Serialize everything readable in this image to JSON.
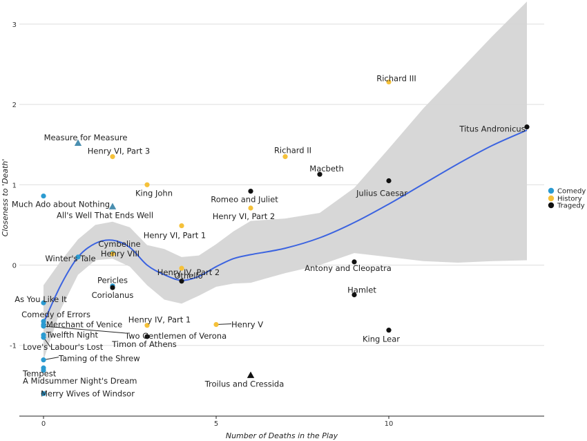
{
  "chart_data": {
    "type": "scatter",
    "xlabel": "Number of Deaths in the Play",
    "ylabel": "Closeness to 'Death'",
    "xlim": [
      -0.7,
      14.5
    ],
    "ylim": [
      -1.88,
      3.3
    ],
    "x_ticks": [
      0,
      5,
      10
    ],
    "y_ticks": [
      -1,
      0,
      1,
      2,
      3
    ],
    "grid": "horizontal",
    "legend": {
      "placement": "right",
      "entries": [
        {
          "label": "Comedy",
          "color": "#2b9bd1"
        },
        {
          "label": "History",
          "color": "#f5c13a"
        },
        {
          "label": "Tragedy",
          "color": "#111111"
        }
      ]
    },
    "colors": {
      "Comedy": "#2b9bd1",
      "History": "#f5c13a",
      "Tragedy": "#111111",
      "problem": "#4a8fb0",
      "smooth": "#3b63e0",
      "band": "#d5d5d5"
    },
    "points": [
      {
        "label": "Richard III",
        "genre": "History",
        "x": 10,
        "y": 2.28
      },
      {
        "label": "Titus Andronicus",
        "genre": "Tragedy",
        "x": 14,
        "y": 1.72
      },
      {
        "label": "Measure for Measure",
        "genre": "Comedy",
        "x": 1,
        "y": 1.52,
        "shape": "triangle"
      },
      {
        "label": "Henry VI, Part 3",
        "genre": "History",
        "x": 2,
        "y": 1.35
      },
      {
        "label": "Richard II",
        "genre": "History",
        "x": 7,
        "y": 1.35
      },
      {
        "label": "Macbeth",
        "genre": "Tragedy",
        "x": 8,
        "y": 1.13
      },
      {
        "label": "Julius Caesar",
        "genre": "Tragedy",
        "x": 10,
        "y": 1.05
      },
      {
        "label": "King John",
        "genre": "History",
        "x": 3,
        "y": 1.0
      },
      {
        "label": "Romeo and Juliet",
        "genre": "Tragedy",
        "x": 6,
        "y": 0.92
      },
      {
        "label": "Much Ado about Nothing",
        "genre": "Comedy",
        "x": 0,
        "y": 0.86
      },
      {
        "label": "All's Well That Ends Well",
        "genre": "Comedy",
        "x": 2,
        "y": 0.73,
        "shape": "triangle"
      },
      {
        "label": "Henry VI, Part 2",
        "genre": "History",
        "x": 6,
        "y": 0.71
      },
      {
        "label": "Henry VI, Part 1",
        "genre": "History",
        "x": 4,
        "y": 0.49
      },
      {
        "label": "Cymbeline",
        "genre": "Comedy",
        "x": 2,
        "y": 0.15
      },
      {
        "label": "Henry VIII",
        "genre": "History",
        "x": 2,
        "y": 0.14
      },
      {
        "label": "Winter's Tale",
        "genre": "Comedy",
        "x": 1,
        "y": 0.1
      },
      {
        "label": "Antony and Cleopatra",
        "genre": "Tragedy",
        "x": 9,
        "y": 0.04
      },
      {
        "label": "Henry IV, Part 2",
        "genre": "History",
        "x": 4,
        "y": -0.04
      },
      {
        "label": "Othello",
        "genre": "Tragedy",
        "x": 4,
        "y": -0.2
      },
      {
        "label": "Pericles",
        "genre": "Comedy",
        "x": 2,
        "y": -0.26
      },
      {
        "label": "Coriolanus",
        "genre": "Tragedy",
        "x": 2,
        "y": -0.28
      },
      {
        "label": "Hamlet",
        "genre": "Tragedy",
        "x": 9,
        "y": -0.37
      },
      {
        "label": "As You Like It",
        "genre": "Comedy",
        "x": 0,
        "y": -0.47
      },
      {
        "label": "Comedy of Errors",
        "genre": "Comedy",
        "x": 0,
        "y": -0.7
      },
      {
        "label": "Merchant of Venice",
        "genre": "Comedy",
        "x": 0,
        "y": -0.74
      },
      {
        "label": "Henry IV, Part 1",
        "genre": "History",
        "x": 3,
        "y": -0.75
      },
      {
        "label": "Two Gentlemen of Verona",
        "genre": "Comedy",
        "x": 0,
        "y": -0.76
      },
      {
        "label": "Henry V",
        "genre": "History",
        "x": 5,
        "y": -0.74
      },
      {
        "label": "King Lear",
        "genre": "Tragedy",
        "x": 10,
        "y": -0.81
      },
      {
        "label": "Twelfth Night",
        "genre": "Comedy",
        "x": 0,
        "y": -0.87
      },
      {
        "label": "Timon of Athens",
        "genre": "Tragedy",
        "x": 3,
        "y": -0.89
      },
      {
        "label": "Love's Labour's Lost",
        "genre": "Comedy",
        "x": 0,
        "y": -0.9
      },
      {
        "label": "Taming of the Shrew",
        "genre": "Comedy",
        "x": 0,
        "y": -1.18
      },
      {
        "label": "Tempest",
        "genre": "Comedy",
        "x": 0,
        "y": -1.28
      },
      {
        "label": "A Midsummer Night's Dream",
        "genre": "Comedy",
        "x": 0,
        "y": -1.31
      },
      {
        "label": "Troilus and Cressida",
        "genre": "Tragedy",
        "x": 6,
        "y": -1.37,
        "shape": "triangle"
      },
      {
        "label": "Merry Wives of Windsor",
        "genre": "Comedy",
        "x": 0,
        "y": -1.6
      }
    ],
    "smooth_line": [
      {
        "x": 0,
        "y": -0.72
      },
      {
        "x": 0.5,
        "y": -0.25
      },
      {
        "x": 1,
        "y": 0.1
      },
      {
        "x": 1.5,
        "y": 0.27
      },
      {
        "x": 2,
        "y": 0.31
      },
      {
        "x": 2.5,
        "y": 0.22
      },
      {
        "x": 3,
        "y": 0.0
      },
      {
        "x": 3.5,
        "y": -0.12
      },
      {
        "x": 4,
        "y": -0.19
      },
      {
        "x": 4.5,
        "y": -0.14
      },
      {
        "x": 5,
        "y": -0.02
      },
      {
        "x": 5.5,
        "y": 0.08
      },
      {
        "x": 6,
        "y": 0.13
      },
      {
        "x": 7,
        "y": 0.21
      },
      {
        "x": 8,
        "y": 0.34
      },
      {
        "x": 9,
        "y": 0.53
      },
      {
        "x": 10,
        "y": 0.76
      },
      {
        "x": 11,
        "y": 1.01
      },
      {
        "x": 12,
        "y": 1.26
      },
      {
        "x": 13,
        "y": 1.49
      },
      {
        "x": 14,
        "y": 1.68
      }
    ],
    "confidence_band": [
      {
        "x": 0,
        "lo": -1.18,
        "hi": -0.25
      },
      {
        "x": 0.5,
        "lo": -0.55,
        "hi": 0.05
      },
      {
        "x": 1,
        "lo": -0.12,
        "hi": 0.32
      },
      {
        "x": 1.5,
        "lo": 0.06,
        "hi": 0.5
      },
      {
        "x": 2,
        "lo": 0.08,
        "hi": 0.54
      },
      {
        "x": 2.5,
        "lo": -0.02,
        "hi": 0.47
      },
      {
        "x": 3,
        "lo": -0.25,
        "hi": 0.25
      },
      {
        "x": 3.5,
        "lo": -0.43,
        "hi": 0.2
      },
      {
        "x": 4,
        "lo": -0.48,
        "hi": 0.1
      },
      {
        "x": 4.5,
        "lo": -0.38,
        "hi": 0.12
      },
      {
        "x": 5,
        "lo": -0.27,
        "hi": 0.26
      },
      {
        "x": 5.5,
        "lo": -0.23,
        "hi": 0.42
      },
      {
        "x": 6,
        "lo": -0.22,
        "hi": 0.55
      },
      {
        "x": 7,
        "lo": -0.1,
        "hi": 0.58
      },
      {
        "x": 8,
        "lo": 0.0,
        "hi": 0.65
      },
      {
        "x": 9,
        "lo": 0.15,
        "hi": 0.96
      },
      {
        "x": 10,
        "lo": 0.1,
        "hi": 1.45
      },
      {
        "x": 11,
        "lo": 0.05,
        "hi": 1.95
      },
      {
        "x": 12,
        "lo": 0.03,
        "hi": 2.4
      },
      {
        "x": 13,
        "lo": 0.05,
        "hi": 2.85
      },
      {
        "x": 14,
        "lo": 0.06,
        "hi": 3.28
      }
    ]
  }
}
